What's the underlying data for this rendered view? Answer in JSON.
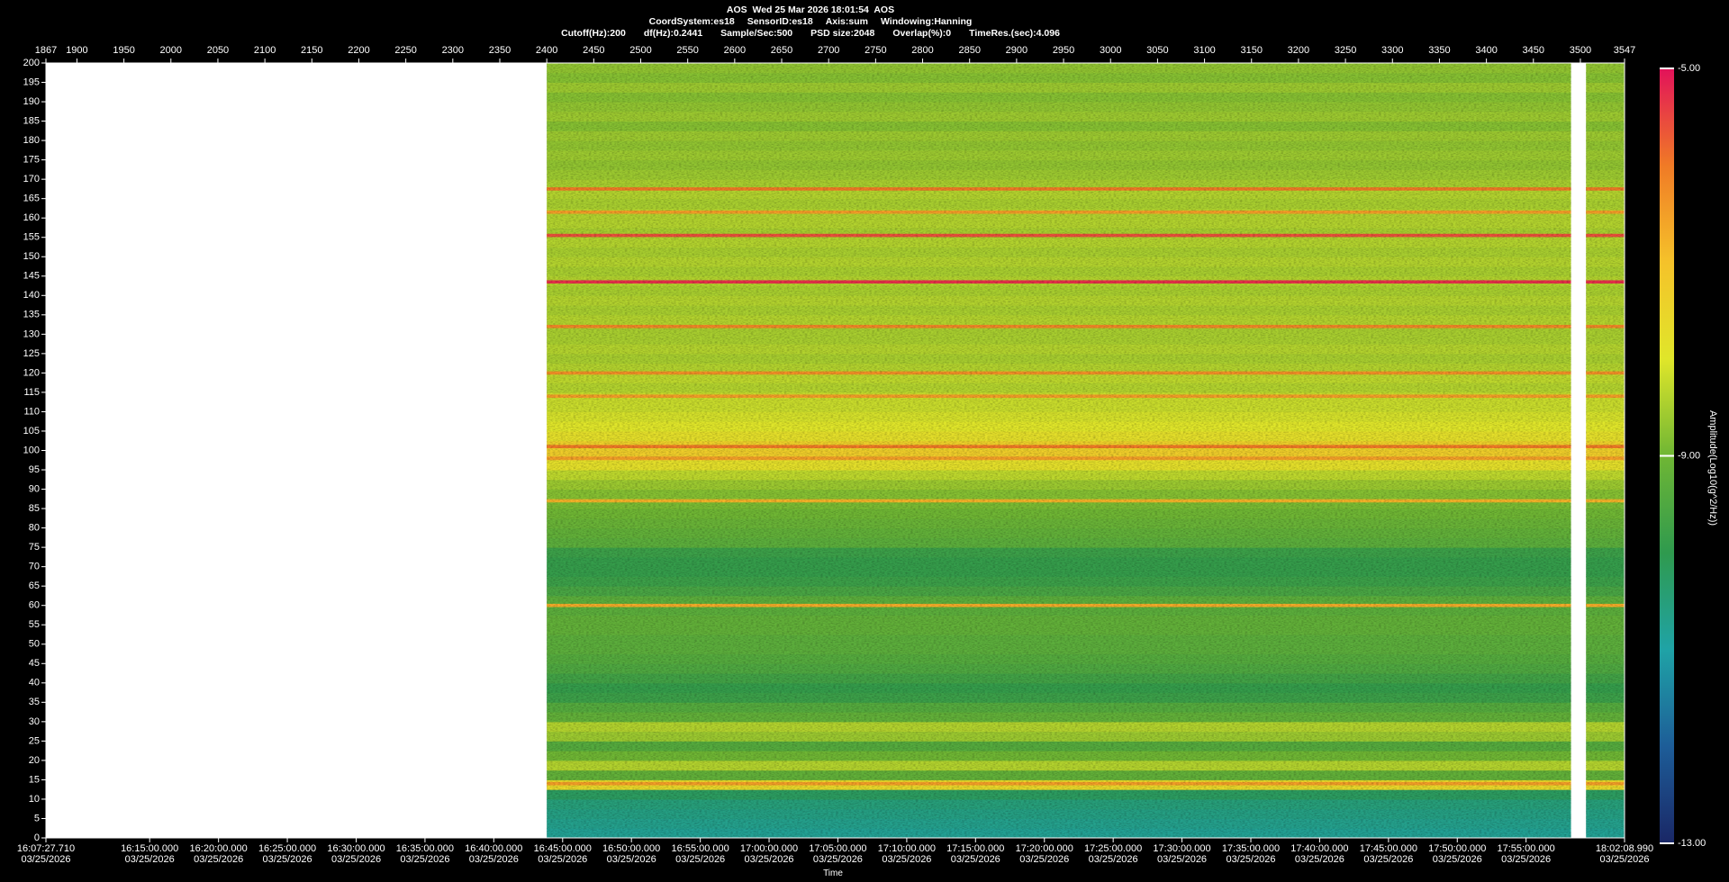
{
  "chart_data": {
    "type": "spectrogram",
    "title": "AOS  Wed 25 Mar 2026 18:01:54  AOS",
    "info": [
      [
        "CoordSystem:es18",
        "SensorID:es18",
        "Axis:sum",
        "Windowing:Hanning"
      ],
      [
        "Cutoff(Hz):200",
        "df(Hz):0.2441",
        "Sample/Sec:500",
        "PSD size:2048",
        "Overlap(%):0",
        "TimeRes.(sec):4.096"
      ]
    ],
    "xlabel": "Time",
    "xlim": [
      1867,
      3547
    ],
    "xticks": [
      1867,
      1900,
      1950,
      2000,
      2050,
      2100,
      2150,
      2200,
      2250,
      2300,
      2350,
      2400,
      2450,
      2500,
      2550,
      2600,
      2650,
      2700,
      2750,
      2800,
      2850,
      2900,
      2950,
      3000,
      3050,
      3100,
      3150,
      3200,
      3250,
      3300,
      3350,
      3400,
      3450,
      3500,
      3547
    ],
    "time_ticks": [
      {
        "value": 1867,
        "label": "16:07:27.710\n03/25/2026"
      },
      {
        "value": 1977.4,
        "label": "16:15:00.000\n03/25/2026"
      },
      {
        "value": 2050.7,
        "label": "16:20:00.000\n03/25/2026"
      },
      {
        "value": 2123.9,
        "label": "16:25:00.000\n03/25/2026"
      },
      {
        "value": 2197.2,
        "label": "16:30:00.000\n03/25/2026"
      },
      {
        "value": 2270.4,
        "label": "16:35:00.000\n03/25/2026"
      },
      {
        "value": 2343.6,
        "label": "16:40:00.000\n03/25/2026"
      },
      {
        "value": 2416.9,
        "label": "16:45:00.000\n03/25/2026"
      },
      {
        "value": 2490.1,
        "label": "16:50:00.000\n03/25/2026"
      },
      {
        "value": 2563.4,
        "label": "16:55:00.000\n03/25/2026"
      },
      {
        "value": 2636.6,
        "label": "17:00:00.000\n03/25/2026"
      },
      {
        "value": 2709.8,
        "label": "17:05:00.000\n03/25/2026"
      },
      {
        "value": 2783.1,
        "label": "17:10:00.000\n03/25/2026"
      },
      {
        "value": 2856.3,
        "label": "17:15:00.000\n03/25/2026"
      },
      {
        "value": 2929.6,
        "label": "17:20:00.000\n03/25/2026"
      },
      {
        "value": 3002.8,
        "label": "17:25:00.000\n03/25/2026"
      },
      {
        "value": 3076.0,
        "label": "17:30:00.000\n03/25/2026"
      },
      {
        "value": 3149.3,
        "label": "17:35:00.000\n03/25/2026"
      },
      {
        "value": 3222.5,
        "label": "17:40:00.000\n03/25/2026"
      },
      {
        "value": 3295.8,
        "label": "17:45:00.000\n03/25/2026"
      },
      {
        "value": 3369.0,
        "label": "17:50:00.000\n03/25/2026"
      },
      {
        "value": 3442.2,
        "label": "17:55:00.000\n03/25/2026"
      },
      {
        "value": 3547,
        "label": "18:02:08.990\n03/25/2026"
      }
    ],
    "ylim": [
      0,
      200
    ],
    "yticks": [
      0,
      5,
      10,
      15,
      20,
      25,
      30,
      35,
      40,
      45,
      50,
      55,
      60,
      65,
      70,
      75,
      80,
      85,
      90,
      95,
      100,
      105,
      110,
      115,
      120,
      125,
      130,
      135,
      140,
      145,
      150,
      155,
      160,
      165,
      170,
      175,
      180,
      185,
      190,
      195,
      200
    ],
    "segments": [
      [
        2400,
        3490
      ],
      [
        3506,
        3547
      ]
    ],
    "ybins": [
      0,
      2.5,
      5,
      7.5,
      10,
      12.5,
      15,
      17.5,
      20,
      22.5,
      25,
      27.5,
      30,
      32.5,
      35,
      37.5,
      40,
      42.5,
      45,
      47.5,
      50,
      52.5,
      55,
      57.5,
      60,
      62.5,
      65,
      67.5,
      70,
      72.5,
      75,
      77.5,
      80,
      82.5,
      85,
      87.5,
      90,
      92.5,
      95,
      97.5,
      100,
      102.5,
      105,
      107.5,
      110,
      112.5,
      115,
      117.5,
      120,
      122.5,
      125,
      127.5,
      130,
      132.5,
      135,
      137.5,
      140,
      142.5,
      145,
      147.5,
      150,
      152.5,
      155,
      157.5,
      160,
      162.5,
      165,
      167.5,
      170,
      172.5,
      175,
      177.5,
      180,
      182.5,
      185,
      187.5,
      190,
      192.5,
      195,
      197.5,
      200
    ],
    "values": [
      -10.8,
      -10.7,
      -10.6,
      -10.5,
      -10.2,
      -7.6,
      -9.2,
      -8.4,
      -9.0,
      -9.4,
      -8.6,
      -8.4,
      -9.2,
      -9.4,
      -9.8,
      -9.9,
      -9.7,
      -9.5,
      -9.4,
      -9.3,
      -9.3,
      -9.2,
      -9.2,
      -9.3,
      -9.3,
      -9.6,
      -9.8,
      -9.9,
      -9.9,
      -9.8,
      -9.3,
      -9.2,
      -9.1,
      -9.0,
      -8.9,
      -8.8,
      -8.6,
      -8.3,
      -7.8,
      -7.3,
      -7.4,
      -7.8,
      -8.0,
      -8.1,
      -8.2,
      -8.2,
      -8.4,
      -8.3,
      -8.4,
      -8.5,
      -8.4,
      -8.5,
      -8.5,
      -8.4,
      -8.5,
      -8.4,
      -8.5,
      -8.4,
      -8.5,
      -8.4,
      -8.5,
      -8.4,
      -8.5,
      -8.4,
      -8.4,
      -8.5,
      -8.4,
      -8.5,
      -8.6,
      -8.7,
      -8.6,
      -8.7,
      -8.6,
      -8.8,
      -8.6,
      -8.7,
      -8.8,
      -8.6,
      -8.8,
      -8.7
    ],
    "lines": {
      "freqs": [
        14,
        60,
        87,
        98,
        101,
        114,
        120,
        132,
        143.5,
        155.5,
        161.5,
        167.5
      ],
      "levels": [
        -6.5,
        -6.7,
        -6.8,
        -6.5,
        -6.0,
        -6.5,
        -6.3,
        -6.2,
        -5.3,
        -5.6,
        -6.5,
        -6.0
      ]
    },
    "clim": [
      -13,
      -5
    ],
    "cticks": [
      {
        "value": -5,
        "label": "-5.00"
      },
      {
        "value": -9,
        "label": "-9.00"
      },
      {
        "value": -13,
        "label": "-13.00"
      }
    ],
    "clabel": "Amplitude(Log10(g^2/Hz))",
    "colormap": [
      "#1a2766",
      "#1d5d98",
      "#1fa3a6",
      "#2f9a4e",
      "#6fb634",
      "#e0e62a",
      "#f5c22a",
      "#f07a26",
      "#e2125a"
    ]
  }
}
